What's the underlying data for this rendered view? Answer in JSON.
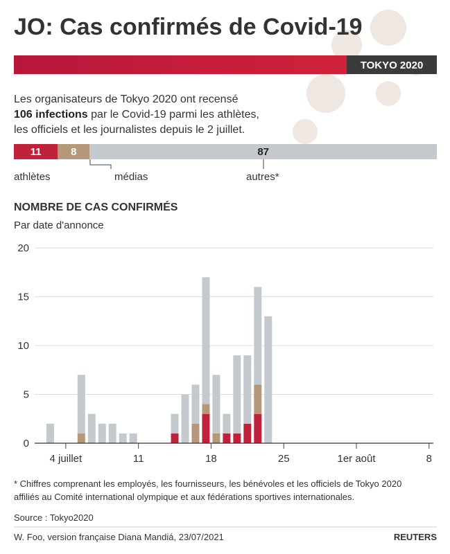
{
  "header": {
    "title": "JO: Cas confirmés de Covid-19",
    "banner": "TOKYO 2020"
  },
  "intro": {
    "line1": "Les organisateurs de Tokyo 2020 ont recensé",
    "bold": "106 infections",
    "line2": " par le Covid-19 parmi les athlètes,",
    "line3": "les officiels et les journalistes depuis le 2 juillet."
  },
  "chart_data": [
    {
      "type": "hbar",
      "stacked": true,
      "series": [
        {
          "name": "athlètes",
          "color": "#c0223b",
          "values": [
            11
          ]
        },
        {
          "name": "médias",
          "color": "#b5977a",
          "values": [
            8
          ]
        },
        {
          "name": "autres*",
          "color": "#c3c9cd",
          "values": [
            87
          ]
        }
      ]
    },
    {
      "type": "bar",
      "stacked": true,
      "title": "NOMBRE DE CAS CONFIRMÉS",
      "subtitle": "Par date d'annonce",
      "categories": [
        null,
        null,
        null,
        null,
        null,
        "4 juillet",
        null,
        null,
        null,
        null,
        null,
        null,
        "11",
        null,
        null,
        null,
        null,
        null,
        null,
        "18",
        null,
        null,
        null,
        null,
        null,
        null,
        "25",
        null,
        null,
        null,
        null,
        null,
        null,
        "1er août",
        null,
        null,
        null,
        null,
        null,
        null,
        "8"
      ],
      "series": [
        {
          "color": "#c0223b",
          "values": [
            null,
            null,
            null,
            0,
            0,
            0,
            0,
            0,
            0,
            0,
            0,
            0,
            0,
            0,
            0,
            1,
            0,
            0,
            3,
            0,
            1,
            1,
            2,
            3,
            null,
            null,
            null,
            null,
            null,
            null,
            null,
            null,
            null,
            null,
            null,
            null,
            null,
            null,
            null,
            null,
            null
          ]
        },
        {
          "color": "#b5977a",
          "values": [
            null,
            null,
            null,
            0,
            0,
            0,
            1,
            0,
            0,
            0,
            0,
            0,
            0,
            0,
            0,
            0,
            0,
            2,
            1,
            1,
            0,
            0,
            0,
            3,
            null,
            null,
            null,
            null,
            null,
            null,
            null,
            null,
            null,
            null,
            null,
            null,
            null,
            null,
            null,
            null,
            null
          ]
        },
        {
          "color": "#c3c9cd",
          "values": [
            null,
            null,
            null,
            2,
            0,
            0,
            6,
            3,
            2,
            2,
            1,
            1,
            0,
            0,
            0,
            2,
            5,
            4,
            13,
            6,
            2,
            8,
            7,
            10,
            13,
            null,
            null,
            null,
            null,
            null,
            null,
            null,
            null,
            null,
            null,
            null,
            null,
            null,
            null,
            null,
            null
          ]
        }
      ],
      "ylim": [
        0,
        20
      ],
      "yticks": [
        0,
        5,
        10,
        15,
        20
      ],
      "grid": true
    }
  ],
  "footer": {
    "note": [
      "* Chiffres comprenant les employés, les fournisseurs, les bénévoles et les officiels de Tokyo 2020",
      "affiliés au Comité international olympique et aux fédérations sportives internationales."
    ],
    "source": "Source : Tokyo2020",
    "credit": "W. Foo, version française Diana Mandiá, 23/07/2021",
    "logo": "REUTERS"
  }
}
